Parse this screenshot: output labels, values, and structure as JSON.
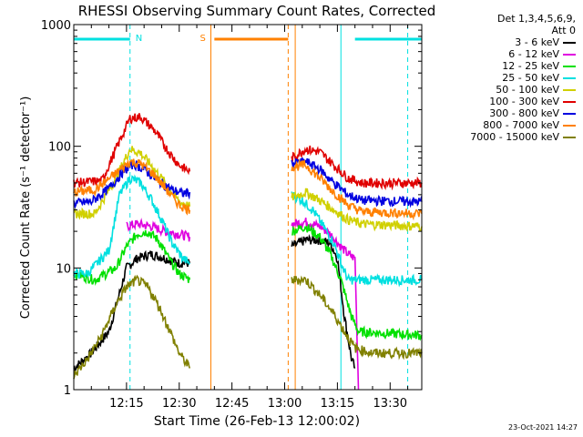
{
  "chart_data": {
    "type": "line",
    "title": "RHESSI Observing Summary Count Rates, Corrected",
    "xlabel": "Start Time (26-Feb-13 12:00:02)",
    "ylabel": "Corrected Count Rate (s⁻¹ detector⁻¹)",
    "xlim_minutes": [
      0,
      99
    ],
    "ylim": [
      1,
      1000
    ],
    "yscale": "log",
    "x_ticks": [
      {
        "label": "12:15",
        "t": 15
      },
      {
        "label": "12:30",
        "t": 30
      },
      {
        "label": "12:45",
        "t": 45
      },
      {
        "label": "13:00",
        "t": 60
      },
      {
        "label": "13:15",
        "t": 75
      },
      {
        "label": "13:30",
        "t": 90
      }
    ],
    "y_ticks": [
      {
        "label": "1000",
        "v": 1000
      },
      {
        "label": "100",
        "v": 100
      },
      {
        "label": "10",
        "v": 10
      },
      {
        "label": "1",
        "v": 1
      }
    ],
    "legend_header": [
      "Det 1,3,4,5,6,9,",
      "Att 0"
    ],
    "series": [
      {
        "name": "3 - 6 keV",
        "color": "#000000",
        "seg1": [
          [
            0,
            1.5
          ],
          [
            5,
            2
          ],
          [
            10,
            3
          ],
          [
            15,
            10
          ],
          [
            18,
            12
          ],
          [
            22,
            13
          ],
          [
            26,
            12
          ],
          [
            30,
            11
          ],
          [
            33,
            11
          ]
        ],
        "seg2": [
          [
            62,
            15
          ],
          [
            66,
            17
          ],
          [
            70,
            17
          ],
          [
            73,
            16
          ],
          [
            75,
            12
          ],
          [
            77,
            4
          ],
          [
            79,
            1.8
          ],
          [
            80,
            1.5
          ]
        ]
      },
      {
        "name": "6 - 12 keV",
        "color": "#e000e0",
        "seg1": [
          [
            15,
            22
          ],
          [
            18,
            23
          ],
          [
            22,
            22
          ],
          [
            26,
            20
          ],
          [
            30,
            19
          ],
          [
            33,
            18
          ]
        ],
        "seg2": [
          [
            62,
            23
          ],
          [
            66,
            24
          ],
          [
            70,
            22
          ],
          [
            73,
            19
          ],
          [
            76,
            15
          ],
          [
            78,
            13
          ],
          [
            80,
            12
          ],
          [
            81,
            1
          ]
        ]
      },
      {
        "name": "12 - 25 keV",
        "color": "#00e000",
        "seg1": [
          [
            0,
            9
          ],
          [
            6,
            8
          ],
          [
            12,
            10
          ],
          [
            15,
            15
          ],
          [
            18,
            19
          ],
          [
            21,
            20
          ],
          [
            24,
            17
          ],
          [
            27,
            12
          ],
          [
            30,
            9
          ],
          [
            33,
            8
          ]
        ],
        "seg2": [
          [
            62,
            20
          ],
          [
            66,
            22
          ],
          [
            70,
            18
          ],
          [
            73,
            13
          ],
          [
            76,
            8
          ],
          [
            79,
            4
          ],
          [
            81,
            3
          ],
          [
            99,
            2.8
          ]
        ]
      },
      {
        "name": "25 - 50 keV",
        "color": "#00e0e0",
        "seg1": [
          [
            0,
            9
          ],
          [
            4,
            9
          ],
          [
            10,
            14
          ],
          [
            13,
            40
          ],
          [
            16,
            55
          ],
          [
            19,
            50
          ],
          [
            22,
            37
          ],
          [
            25,
            25
          ],
          [
            28,
            16
          ],
          [
            31,
            12
          ],
          [
            33,
            11
          ]
        ],
        "seg2": [
          [
            62,
            40
          ],
          [
            65,
            36
          ],
          [
            68,
            30
          ],
          [
            71,
            22
          ],
          [
            74,
            16
          ],
          [
            76,
            11
          ],
          [
            78,
            8
          ],
          [
            80,
            8
          ],
          [
            99,
            8
          ]
        ]
      },
      {
        "name": "50 - 100 keV",
        "color": "#d0d000",
        "seg1": [
          [
            0,
            28
          ],
          [
            6,
            28
          ],
          [
            12,
            55
          ],
          [
            16,
            95
          ],
          [
            19,
            88
          ],
          [
            22,
            70
          ],
          [
            26,
            50
          ],
          [
            30,
            35
          ],
          [
            33,
            32
          ]
        ],
        "seg2": [
          [
            62,
            38
          ],
          [
            66,
            42
          ],
          [
            70,
            36
          ],
          [
            74,
            30
          ],
          [
            78,
            25
          ],
          [
            82,
            23
          ],
          [
            99,
            22
          ]
        ]
      },
      {
        "name": "100 - 300 keV",
        "color": "#e00000",
        "seg1": [
          [
            0,
            50
          ],
          [
            8,
            52
          ],
          [
            13,
            110
          ],
          [
            16,
            170
          ],
          [
            19,
            175
          ],
          [
            23,
            135
          ],
          [
            27,
            90
          ],
          [
            30,
            70
          ],
          [
            33,
            62
          ]
        ],
        "seg2": [
          [
            62,
            80
          ],
          [
            66,
            95
          ],
          [
            70,
            90
          ],
          [
            74,
            70
          ],
          [
            78,
            55
          ],
          [
            82,
            50
          ],
          [
            99,
            50
          ]
        ]
      },
      {
        "name": "300 - 800 keV",
        "color": "#0000e0",
        "seg1": [
          [
            0,
            34
          ],
          [
            5,
            35
          ],
          [
            10,
            45
          ],
          [
            14,
            62
          ],
          [
            17,
            72
          ],
          [
            20,
            65
          ],
          [
            24,
            52
          ],
          [
            28,
            44
          ],
          [
            31,
            41
          ],
          [
            33,
            42
          ]
        ],
        "seg2": [
          [
            62,
            72
          ],
          [
            66,
            75
          ],
          [
            70,
            65
          ],
          [
            74,
            50
          ],
          [
            78,
            40
          ],
          [
            82,
            36
          ],
          [
            99,
            35
          ]
        ]
      },
      {
        "name": "800 - 7000 keV",
        "color": "#ff8000",
        "seg1": [
          [
            0,
            42
          ],
          [
            6,
            44
          ],
          [
            12,
            60
          ],
          [
            16,
            75
          ],
          [
            19,
            72
          ],
          [
            23,
            58
          ],
          [
            27,
            42
          ],
          [
            30,
            33
          ],
          [
            33,
            30
          ]
        ],
        "seg2": [
          [
            62,
            68
          ],
          [
            66,
            70
          ],
          [
            70,
            55
          ],
          [
            74,
            42
          ],
          [
            78,
            33
          ],
          [
            82,
            29
          ],
          [
            99,
            28
          ]
        ]
      },
      {
        "name": "7000 - 15000 keV",
        "color": "#808000",
        "seg1": [
          [
            0,
            1.3
          ],
          [
            4,
            1.8
          ],
          [
            8,
            2.8
          ],
          [
            12,
            5
          ],
          [
            15,
            7
          ],
          [
            18,
            8
          ],
          [
            21,
            7
          ],
          [
            24,
            5
          ],
          [
            27,
            3.2
          ],
          [
            30,
            2
          ],
          [
            33,
            1.5
          ]
        ],
        "seg2": [
          [
            62,
            8
          ],
          [
            66,
            8
          ],
          [
            70,
            6
          ],
          [
            74,
            4.2
          ],
          [
            77,
            3
          ],
          [
            80,
            2.2
          ],
          [
            85,
            2
          ],
          [
            99,
            2
          ]
        ]
      }
    ],
    "annotations": [
      {
        "label": "N",
        "t": 16,
        "kind": "night",
        "color": "#00e0e0"
      },
      {
        "label": "S",
        "t": 39,
        "kind": "saa",
        "color": "#ff8000"
      }
    ],
    "top_bars": [
      {
        "color": "#00e0e0",
        "t0": 0,
        "t1": 16
      },
      {
        "color": "#ff8000",
        "t0": 40,
        "t1": 61
      },
      {
        "color": "#00e0e0",
        "t0": 80,
        "t1": 99
      }
    ],
    "vlines": [
      {
        "t": 16,
        "color": "#00e0e0",
        "dash": true
      },
      {
        "t": 39,
        "color": "#ff8000",
        "dash": false
      },
      {
        "t": 61,
        "color": "#ff8000",
        "dash": true
      },
      {
        "t": 63,
        "color": "#ff8000",
        "dash": false
      },
      {
        "t": 76,
        "color": "#00e0e0",
        "dash": false
      },
      {
        "t": 95,
        "color": "#00e0e0",
        "dash": true
      }
    ]
  },
  "timestamp": "23-Oct-2021 14:27"
}
